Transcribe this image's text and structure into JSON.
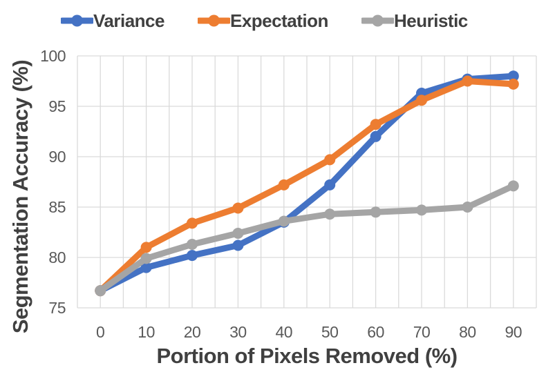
{
  "chart_data": {
    "type": "line",
    "title": "",
    "xlabel": "Portion of Pixels Removed (%)",
    "ylabel": "Segmentation Accuracy (%)",
    "x": [
      0,
      10,
      20,
      30,
      40,
      50,
      60,
      70,
      80,
      90
    ],
    "series": [
      {
        "name": "Variance",
        "color": "#4472C4",
        "values": [
          76.7,
          79.0,
          80.2,
          81.2,
          83.5,
          87.2,
          92.0,
          96.3,
          97.7,
          98.0
        ]
      },
      {
        "name": "Expectation",
        "color": "#ED7D31",
        "values": [
          76.7,
          81.0,
          83.4,
          84.9,
          87.2,
          89.7,
          93.2,
          95.6,
          97.5,
          97.2
        ]
      },
      {
        "name": "Heuristic",
        "color": "#A5A5A5",
        "values": [
          76.7,
          79.9,
          81.3,
          82.4,
          83.6,
          84.3,
          84.5,
          84.7,
          85.0,
          87.1
        ]
      }
    ],
    "ylim": [
      75,
      100
    ],
    "yticks": [
      75,
      80,
      85,
      90,
      95,
      100
    ],
    "grid": true,
    "legend_position": "top",
    "marker": "circle"
  },
  "colors": {
    "gridline": "#DADADA",
    "tick_text": "#595959",
    "title_text": "#404040",
    "background": "#FFFFFF"
  }
}
